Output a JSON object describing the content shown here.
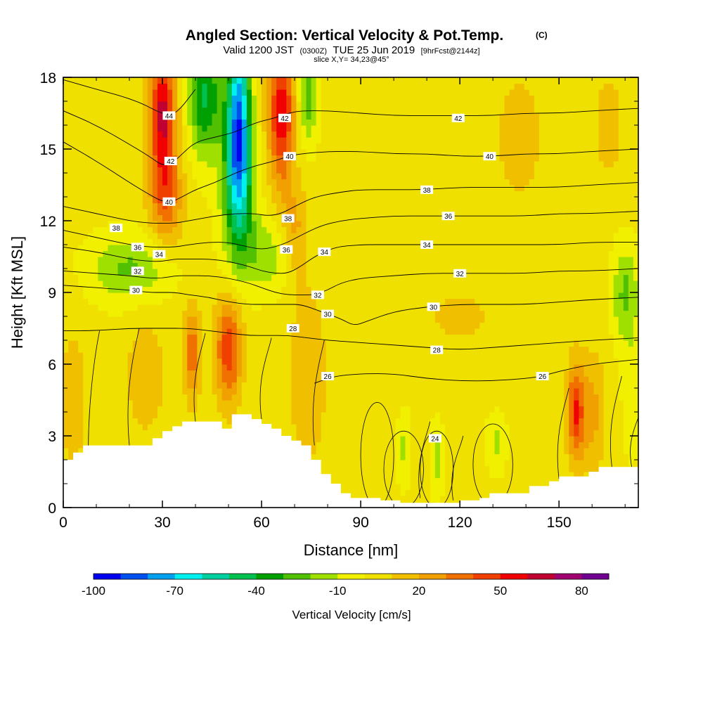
{
  "chart_data": {
    "type": "heatmap",
    "title": "Angled Section: Vertical Velocity & Pot.Temp.",
    "title_unit": "(C)",
    "subtitle": {
      "prefix": "Valid 1200 JST",
      "utc": "(0300Z)",
      "date": "TUE 25 Jun 2019",
      "forecast": "[9hrFcst@2144z]"
    },
    "slice_text": "slice X,Y= 34,23@45°",
    "xlabel": "Distance [nm]",
    "ylabel": "Height [Kft MSL]",
    "xlim": [
      0,
      174
    ],
    "ylim": [
      0,
      18
    ],
    "x_ticks": [
      0,
      30,
      60,
      90,
      120,
      150
    ],
    "y_ticks": [
      0,
      3,
      6,
      9,
      12,
      15,
      18
    ],
    "shaded_field": "Vertical Velocity [cm/s]",
    "contour_field": "Potential Temperature (C)",
    "colorbar": {
      "title": "Vertical Velocity [cm/s]",
      "tick_labels": [
        "-100",
        "-70",
        "-40",
        "-10",
        "20",
        "50",
        "80"
      ],
      "bin_edges": [
        -100,
        -90,
        -80,
        -70,
        -60,
        -50,
        -40,
        -30,
        -20,
        -10,
        0,
        10,
        20,
        30,
        40,
        50,
        60,
        70,
        80,
        90
      ],
      "colors": [
        "#0000f0",
        "#0050f0",
        "#00a0f0",
        "#00f0f0",
        "#00d0a0",
        "#00c050",
        "#00a000",
        "#50c000",
        "#a0e000",
        "#f0f000",
        "#f0e000",
        "#f0c000",
        "#f0a000",
        "#f07000",
        "#f04000",
        "#f00000",
        "#c00030",
        "#a00070",
        "#700090"
      ]
    },
    "w_centers": [
      {
        "x": 30,
        "z": 16.5,
        "w": 60,
        "rx": 4,
        "rz": 2.5
      },
      {
        "x": 31,
        "z": 13.0,
        "w": 35,
        "rx": 5,
        "rz": 2.0
      },
      {
        "x": 43,
        "z": 17.2,
        "w": -45,
        "rx": 5,
        "rz": 2.5
      },
      {
        "x": 53,
        "z": 16.3,
        "w": -80,
        "rx": 3.5,
        "rz": 3.5
      },
      {
        "x": 53,
        "z": 13.0,
        "w": -40,
        "rx": 5,
        "rz": 3.0
      },
      {
        "x": 62,
        "z": 10.5,
        "w": -20,
        "rx": 8,
        "rz": 1.5
      },
      {
        "x": 66,
        "z": 16.5,
        "w": 55,
        "rx": 4,
        "rz": 3.0
      },
      {
        "x": 70,
        "z": 11.5,
        "w": 20,
        "rx": 4,
        "rz": 2.0
      },
      {
        "x": 74,
        "z": 17.3,
        "w": -30,
        "rx": 3,
        "rz": 2.0
      },
      {
        "x": 20,
        "z": 10.0,
        "w": -25,
        "rx": 12,
        "rz": 1.4
      },
      {
        "x": 50,
        "z": 6.6,
        "w": 45,
        "rx": 4,
        "rz": 2.2
      },
      {
        "x": 39,
        "z": 6.5,
        "w": 35,
        "rx": 2.5,
        "rz": 2.0
      },
      {
        "x": 25,
        "z": 5.5,
        "w": 15,
        "rx": 6,
        "rz": 2.5
      },
      {
        "x": 74,
        "z": 5.5,
        "w": 15,
        "rx": 6,
        "rz": 4.0
      },
      {
        "x": 155,
        "z": 4.0,
        "w": 45,
        "rx": 2.5,
        "rz": 2.0
      },
      {
        "x": 160,
        "z": 4.0,
        "w": 20,
        "rx": 4,
        "rz": 2.5
      },
      {
        "x": 170,
        "z": 9.0,
        "w": -25,
        "rx": 4,
        "rz": 2.0
      },
      {
        "x": 172,
        "z": 5.0,
        "w": -10,
        "rx": 3,
        "rz": 3.0
      },
      {
        "x": 103,
        "z": 2.5,
        "w": -15,
        "rx": 2,
        "rz": 1.5
      },
      {
        "x": 113,
        "z": 2.0,
        "w": -18,
        "rx": 2,
        "rz": 1.5
      },
      {
        "x": 131,
        "z": 2.7,
        "w": -15,
        "rx": 3,
        "rz": 1.2
      },
      {
        "x": 138,
        "z": 15.5,
        "w": 12,
        "rx": 8,
        "rz": 3.0
      },
      {
        "x": 165,
        "z": 16.0,
        "w": 10,
        "rx": 6,
        "rz": 3.0
      },
      {
        "x": 120,
        "z": 8.0,
        "w": 8,
        "rx": 20,
        "rz": 2.0
      },
      {
        "x": 3,
        "z": 4.5,
        "w": 15,
        "rx": 4,
        "rz": 3.0
      }
    ],
    "contours": [
      {
        "label": "44",
        "x": [
          0,
          10,
          18,
          24,
          28,
          32,
          35,
          40
        ],
        "z": [
          17.9,
          17.5,
          17.2,
          16.9,
          16.6,
          16.4,
          16.6,
          17.5
        ],
        "label_x": 32
      },
      {
        "label": "42",
        "x": [
          0,
          10,
          20,
          26,
          30,
          33,
          36,
          40,
          46,
          52,
          58,
          64,
          68,
          72,
          80,
          90,
          100,
          110,
          120,
          130,
          140,
          150,
          160,
          174
        ],
        "z": [
          16.6,
          16.0,
          15.2,
          14.7,
          14.3,
          14.4,
          14.8,
          15.3,
          15.5,
          15.7,
          16.1,
          16.3,
          16.5,
          16.6,
          16.6,
          16.5,
          16.4,
          16.4,
          16.4,
          16.4,
          16.5,
          16.5,
          16.6,
          16.7
        ],
        "label_x": 120
      },
      {
        "label": "40",
        "x": [
          0,
          10,
          20,
          26,
          30,
          33,
          36,
          40,
          46,
          52,
          58,
          64,
          68,
          72,
          80,
          90,
          100,
          110,
          120,
          130,
          140,
          150,
          160,
          174
        ],
        "z": [
          15.3,
          14.5,
          13.6,
          13.1,
          12.8,
          12.8,
          13.0,
          13.3,
          13.6,
          14.0,
          14.3,
          14.5,
          14.7,
          14.8,
          14.9,
          14.9,
          14.8,
          14.8,
          14.7,
          14.7,
          14.8,
          14.8,
          14.9,
          15.0
        ],
        "label_x": 129
      },
      {
        "label": "38",
        "x": [
          0,
          10,
          20,
          26,
          30,
          34,
          38,
          42,
          46,
          52,
          58,
          62,
          66,
          70,
          76,
          84,
          90,
          100,
          110,
          120,
          130,
          140,
          150,
          160,
          174
        ],
        "z": [
          12.6,
          12.3,
          12.0,
          11.9,
          11.9,
          11.9,
          12.0,
          12.1,
          12.2,
          12.3,
          12.3,
          12.2,
          12.3,
          12.6,
          13.0,
          13.2,
          13.3,
          13.3,
          13.3,
          13.4,
          13.4,
          13.4,
          13.4,
          13.5,
          13.6
        ],
        "label_x": 110
      },
      {
        "label": "36",
        "x": [
          0,
          10,
          20,
          26,
          30,
          34,
          38,
          44,
          50,
          56,
          60,
          64,
          68,
          72,
          78,
          84,
          90,
          100,
          110,
          120,
          130,
          140,
          150,
          160,
          174
        ],
        "z": [
          11.6,
          11.3,
          11.0,
          10.9,
          10.9,
          10.9,
          11.0,
          11.1,
          11.1,
          10.9,
          10.8,
          10.9,
          11.1,
          11.4,
          11.8,
          12.0,
          12.1,
          12.2,
          12.2,
          12.2,
          12.2,
          12.2,
          12.3,
          12.3,
          12.4
        ],
        "label_x": 117
      },
      {
        "label": "34",
        "x": [
          0,
          10,
          20,
          26,
          30,
          34,
          38,
          44,
          50,
          56,
          60,
          64,
          68,
          72,
          76,
          82,
          90,
          100,
          110,
          120,
          130,
          140,
          150,
          160,
          174
        ],
        "z": [
          10.9,
          10.7,
          10.4,
          10.3,
          10.3,
          10.4,
          10.4,
          10.4,
          10.3,
          10.1,
          9.9,
          9.8,
          9.8,
          10.1,
          10.5,
          10.9,
          11.0,
          11.0,
          11.0,
          11.0,
          11.0,
          11.0,
          11.0,
          11.1,
          11.1
        ],
        "label_x": 110
      },
      {
        "label": "32",
        "x": [
          0,
          10,
          20,
          26,
          30,
          34,
          38,
          44,
          50,
          56,
          60,
          64,
          68,
          72,
          76,
          80,
          84,
          90,
          100,
          110,
          120,
          130,
          140,
          150,
          160,
          174
        ],
        "z": [
          9.9,
          9.8,
          9.7,
          9.6,
          9.6,
          9.7,
          9.7,
          9.7,
          9.6,
          9.4,
          9.2,
          9.0,
          8.9,
          8.9,
          8.9,
          9.1,
          9.4,
          9.6,
          9.7,
          9.8,
          9.8,
          9.8,
          9.8,
          9.9,
          9.9,
          10.0
        ],
        "label_x": 120
      },
      {
        "label": "30",
        "x": [
          0,
          10,
          20,
          26,
          30,
          34,
          38,
          44,
          50,
          56,
          60,
          64,
          68,
          72,
          78,
          84,
          88,
          92,
          100,
          110,
          120,
          130,
          140,
          150,
          160,
          174
        ],
        "z": [
          9.3,
          9.2,
          9.1,
          9.0,
          9.0,
          9.0,
          8.9,
          8.8,
          8.6,
          8.5,
          8.5,
          8.5,
          8.5,
          8.5,
          8.2,
          7.9,
          7.6,
          7.8,
          8.2,
          8.4,
          8.5,
          8.5,
          8.5,
          8.6,
          8.7,
          8.8
        ],
        "label_x": 112
      },
      {
        "label": "28",
        "x": [
          0,
          10,
          20,
          30,
          38,
          44,
          50,
          56,
          62,
          68,
          74,
          80,
          90,
          100,
          110,
          120,
          130,
          140,
          150,
          160,
          174
        ],
        "z": [
          7.4,
          7.4,
          7.5,
          7.5,
          7.5,
          7.4,
          7.3,
          7.2,
          7.2,
          7.2,
          7.1,
          7.0,
          6.9,
          6.8,
          6.7,
          6.6,
          6.7,
          6.8,
          6.9,
          7.0,
          7.1
        ],
        "label_x": 113
      },
      {
        "label": "26",
        "x": [
          76,
          82,
          90,
          100,
          110,
          120,
          130,
          140,
          145,
          150,
          160,
          174
        ],
        "z": [
          5.2,
          5.5,
          5.6,
          5.6,
          5.4,
          5.3,
          5.3,
          5.4,
          5.5,
          5.7,
          6.0,
          6.2
        ],
        "label_x": 145
      }
    ],
    "contour_labels": [
      {
        "text": "44",
        "x": 32.0,
        "z": 16.4
      },
      {
        "text": "42",
        "x": 32.5,
        "z": 14.5
      },
      {
        "text": "40",
        "x": 32.0,
        "z": 12.8
      },
      {
        "text": "38",
        "x": 16.0,
        "z": 11.7
      },
      {
        "text": "36",
        "x": 22.5,
        "z": 10.9
      },
      {
        "text": "34",
        "x": 29.0,
        "z": 10.6
      },
      {
        "text": "32",
        "x": 22.5,
        "z": 9.9
      },
      {
        "text": "30",
        "x": 22.0,
        "z": 9.1
      },
      {
        "text": "42",
        "x": 67.0,
        "z": 16.3
      },
      {
        "text": "40",
        "x": 68.5,
        "z": 14.7
      },
      {
        "text": "38",
        "x": 68.0,
        "z": 12.1
      },
      {
        "text": "36",
        "x": 67.5,
        "z": 10.8
      },
      {
        "text": "34",
        "x": 79.0,
        "z": 10.7
      },
      {
        "text": "32",
        "x": 77.0,
        "z": 8.9
      },
      {
        "text": "30",
        "x": 80.0,
        "z": 8.1
      },
      {
        "text": "28",
        "x": 69.5,
        "z": 7.5
      },
      {
        "text": "26",
        "x": 80.0,
        "z": 5.5
      },
      {
        "text": "24",
        "x": 112.5,
        "z": 2.9
      },
      {
        "text": "42",
        "x": 119.5,
        "z": 16.3
      },
      {
        "text": "40",
        "x": 129.0,
        "z": 14.7
      },
      {
        "text": "38",
        "x": 110.0,
        "z": 13.3
      },
      {
        "text": "36",
        "x": 116.5,
        "z": 12.2
      },
      {
        "text": "34",
        "x": 110.0,
        "z": 11.0
      },
      {
        "text": "32",
        "x": 120.0,
        "z": 9.8
      },
      {
        "text": "30",
        "x": 112.0,
        "z": 8.4
      },
      {
        "text": "28",
        "x": 113.0,
        "z": 6.6
      },
      {
        "text": "26",
        "x": 145.0,
        "z": 5.5
      }
    ],
    "terrain": {
      "x": [
        0,
        3,
        3,
        6,
        6,
        9,
        9,
        27,
        27,
        30,
        30,
        33,
        33,
        36,
        36,
        48,
        48,
        51,
        51,
        57,
        57,
        60,
        60,
        63,
        63,
        66,
        66,
        69,
        69,
        72,
        72,
        75,
        75,
        78,
        78,
        81,
        81,
        84,
        84,
        87,
        87,
        96,
        96,
        102,
        102,
        105,
        105,
        120,
        120,
        126,
        126,
        129,
        129,
        141,
        141,
        147,
        147,
        150,
        150,
        159,
        159,
        162,
        162,
        165,
        165,
        174
      ],
      "z": [
        2.0,
        2.0,
        2.3,
        2.3,
        2.6,
        2.6,
        2.6,
        2.6,
        2.9,
        2.9,
        3.2,
        3.2,
        3.4,
        3.4,
        3.6,
        3.6,
        3.3,
        3.3,
        3.9,
        3.9,
        3.7,
        3.7,
        3.5,
        3.5,
        3.3,
        3.3,
        3.0,
        3.0,
        2.8,
        2.8,
        2.6,
        2.6,
        2.0,
        2.0,
        1.4,
        1.4,
        1.0,
        1.0,
        0.6,
        0.6,
        0.4,
        0.4,
        0.3,
        0.3,
        0.2,
        0.2,
        0.2,
        0.2,
        0.3,
        0.3,
        0.4,
        0.4,
        0.6,
        0.6,
        0.9,
        0.9,
        1.1,
        1.1,
        1.3,
        1.3,
        1.5,
        1.5,
        1.7,
        1.7,
        1.7,
        1.7
      ]
    }
  }
}
